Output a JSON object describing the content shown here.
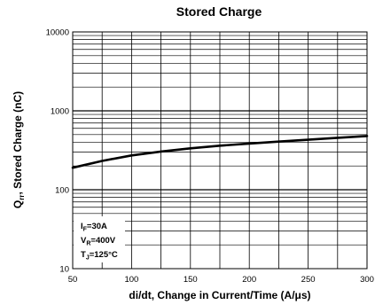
{
  "chart_data": {
    "type": "line",
    "title": "Stored Charge",
    "xlabel": "di/dt, Change in Current/Time  (A/μs)",
    "ylabel_main": "Q",
    "ylabel_sub": "rr",
    "ylabel_rest": ", Stored Charge (nC)",
    "xlim": [
      50,
      300
    ],
    "ylim": [
      10,
      10000
    ],
    "yscale": "log",
    "grid": true,
    "x_ticks": [
      50,
      100,
      150,
      200,
      250,
      300
    ],
    "x_tick_labels": [
      "50",
      "100",
      "150",
      "200",
      "250",
      "300"
    ],
    "y_ticks": [
      10,
      100,
      1000,
      10000
    ],
    "y_tick_labels": [
      "10",
      "100",
      "1000",
      "10000"
    ],
    "series": [
      {
        "x": [
          50,
          75,
          100,
          125,
          150,
          175,
          200,
          225,
          250,
          275,
          300
        ],
        "y": [
          190,
          232,
          272,
          305,
          335,
          362,
          385,
          408,
          430,
          455,
          480
        ]
      }
    ],
    "conditions": [
      {
        "main": "I",
        "sub": "F",
        "rest": "=30A"
      },
      {
        "main": "V",
        "sub": "R",
        "rest": "=400V"
      },
      {
        "main": "T",
        "sub": "J",
        "rest": "=125°C"
      }
    ]
  }
}
